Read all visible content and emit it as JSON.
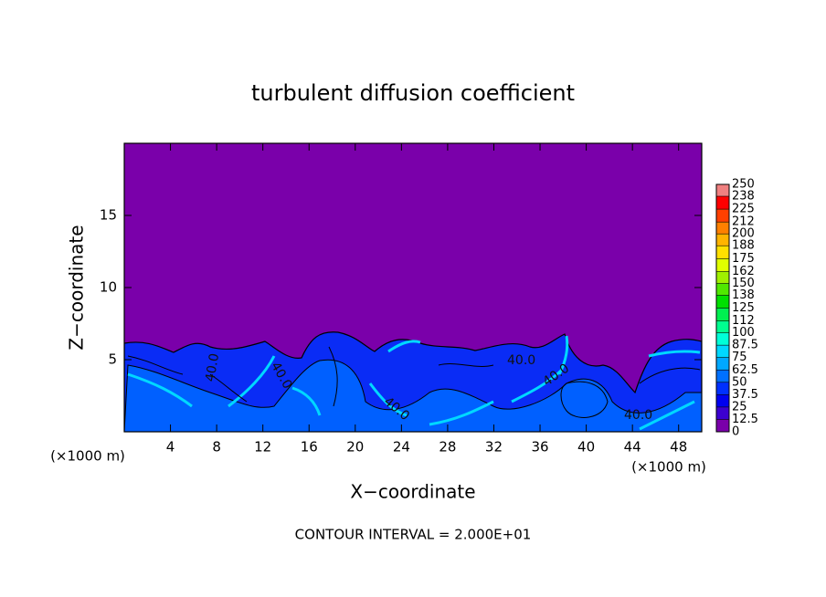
{
  "chart_data": {
    "type": "contour",
    "title": "turbulent diffusion coefficient",
    "xlabel": "X−coordinate",
    "ylabel": "Z−coordinate",
    "x_unit": "(×1000 m)",
    "footer": "CONTOUR INTERVAL = 2.000E+01",
    "xlim": [
      0,
      50
    ],
    "xticks": [
      4,
      8,
      12,
      16,
      20,
      24,
      28,
      32,
      36,
      40,
      44,
      48
    ],
    "ylim": [
      0,
      20
    ],
    "yticks": [
      5,
      10,
      15
    ],
    "contour_labels": [
      "40.0",
      "40.0",
      "40.0",
      "40.0",
      "40.0",
      "40.0"
    ],
    "colorbar": {
      "levels": [
        0,
        12.5,
        25,
        37.5,
        50,
        62.5,
        75,
        87.5,
        100,
        112,
        125,
        138,
        150,
        162,
        175,
        188,
        200,
        212,
        225,
        238,
        250
      ],
      "colors": [
        "#7a00aa",
        "#3c00d0",
        "#0000f0",
        "#0030ff",
        "#0070ff",
        "#00a8ff",
        "#00d8ff",
        "#00ffd8",
        "#00ff90",
        "#00f050",
        "#00e000",
        "#50e800",
        "#a0f000",
        "#e0ff00",
        "#ffe000",
        "#ffb400",
        "#ff8000",
        "#ff4000",
        "#ff0000",
        "#f08080"
      ]
    }
  }
}
